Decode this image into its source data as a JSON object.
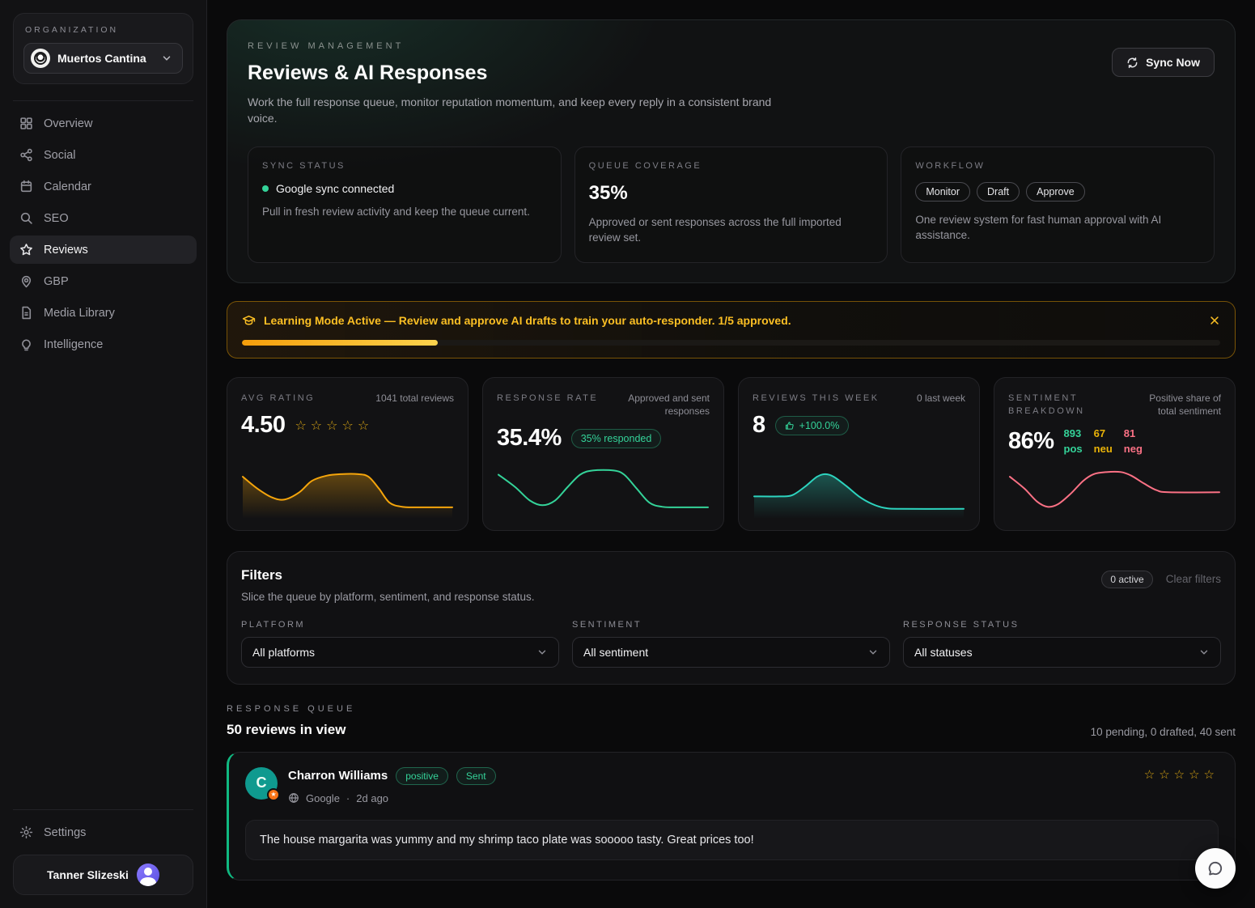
{
  "colors": {
    "amber": "#f5a50b",
    "green": "#34d399",
    "teal": "#2dd4bf",
    "pink": "#fb7185",
    "star_gold": "#d9a514"
  },
  "sidebar": {
    "org_label": "ORGANIZATION",
    "org_name": "Muertos Cantina",
    "nav": [
      {
        "label": "Overview"
      },
      {
        "label": "Social"
      },
      {
        "label": "Calendar"
      },
      {
        "label": "SEO"
      },
      {
        "label": "Reviews"
      },
      {
        "label": "GBP"
      },
      {
        "label": "Media Library"
      },
      {
        "label": "Intelligence"
      }
    ],
    "settings_label": "Settings",
    "user_name": "Tanner Slizeski"
  },
  "hero": {
    "eyebrow": "REVIEW MANAGEMENT",
    "title": "Reviews & AI Responses",
    "description": "Work the full response queue, monitor reputation momentum, and keep every reply in a consistent brand voice.",
    "sync_button": "Sync Now",
    "cards": [
      {
        "label": "SYNC STATUS",
        "status": "Google sync connected",
        "description": "Pull in fresh review activity and keep the queue current."
      },
      {
        "label": "QUEUE COVERAGE",
        "value": "35%",
        "description": "Approved or sent responses across the full imported review set."
      },
      {
        "label": "WORKFLOW",
        "pills": [
          "Monitor",
          "Draft",
          "Approve"
        ],
        "description": "One review system for fast human approval with AI assistance."
      }
    ]
  },
  "banner": {
    "message": "Learning Mode Active — Review and approve AI drafts to train your auto-responder. 1/5 approved.",
    "progress_percent": 20
  },
  "stats": [
    {
      "label": "AVG RATING",
      "side_note": "1041 total reviews",
      "value": "4.50",
      "stars": 5,
      "spark": {
        "color": "#f5a50b",
        "fill": true,
        "points": [
          [
            0,
            0.22
          ],
          [
            0.07,
            0.45
          ],
          [
            0.14,
            0.62
          ],
          [
            0.2,
            0.66
          ],
          [
            0.27,
            0.52
          ],
          [
            0.33,
            0.3
          ],
          [
            0.4,
            0.2
          ],
          [
            0.47,
            0.17
          ],
          [
            0.55,
            0.17
          ],
          [
            0.6,
            0.22
          ],
          [
            0.65,
            0.45
          ],
          [
            0.7,
            0.72
          ],
          [
            0.76,
            0.8
          ],
          [
            0.84,
            0.81
          ],
          [
            1,
            0.81
          ]
        ]
      }
    },
    {
      "label": "RESPONSE RATE",
      "side_note": "Approved and sent responses",
      "value": "35.4%",
      "pill": "35% responded",
      "spark": {
        "color": "#34d399",
        "fill": false,
        "points": [
          [
            0,
            0.18
          ],
          [
            0.08,
            0.42
          ],
          [
            0.15,
            0.68
          ],
          [
            0.21,
            0.77
          ],
          [
            0.27,
            0.68
          ],
          [
            0.33,
            0.42
          ],
          [
            0.39,
            0.18
          ],
          [
            0.45,
            0.1
          ],
          [
            0.55,
            0.1
          ],
          [
            0.6,
            0.18
          ],
          [
            0.66,
            0.45
          ],
          [
            0.72,
            0.72
          ],
          [
            0.78,
            0.8
          ],
          [
            0.85,
            0.81
          ],
          [
            1,
            0.81
          ]
        ]
      }
    },
    {
      "label": "REVIEWS THIS WEEK",
      "side_note": "0 last week",
      "value": "8",
      "pill": "+100.0%",
      "spark": {
        "color": "#2dd4bf",
        "fill": true,
        "points": [
          [
            0,
            0.6
          ],
          [
            0.12,
            0.6
          ],
          [
            0.18,
            0.58
          ],
          [
            0.24,
            0.42
          ],
          [
            0.3,
            0.22
          ],
          [
            0.34,
            0.17
          ],
          [
            0.38,
            0.22
          ],
          [
            0.44,
            0.4
          ],
          [
            0.5,
            0.6
          ],
          [
            0.56,
            0.74
          ],
          [
            0.62,
            0.82
          ],
          [
            0.7,
            0.84
          ],
          [
            1,
            0.84
          ]
        ]
      }
    },
    {
      "label": "SENTIMENT BREAKDOWN",
      "side_note": "Positive share of total sentiment",
      "value": "86%",
      "breakdown": [
        {
          "value": "893",
          "name": "pos"
        },
        {
          "value": "67",
          "name": "neu"
        },
        {
          "value": "81",
          "name": "neg"
        }
      ],
      "spark": {
        "color": "#fb7185",
        "fill": false,
        "points": [
          [
            0,
            0.22
          ],
          [
            0.07,
            0.45
          ],
          [
            0.13,
            0.7
          ],
          [
            0.18,
            0.8
          ],
          [
            0.23,
            0.75
          ],
          [
            0.29,
            0.55
          ],
          [
            0.35,
            0.3
          ],
          [
            0.4,
            0.17
          ],
          [
            0.46,
            0.13
          ],
          [
            0.53,
            0.13
          ],
          [
            0.58,
            0.2
          ],
          [
            0.64,
            0.35
          ],
          [
            0.7,
            0.48
          ],
          [
            0.76,
            0.52
          ],
          [
            1,
            0.52
          ]
        ]
      }
    }
  ],
  "filters": {
    "title": "Filters",
    "subtitle": "Slice the queue by platform, sentiment, and response status.",
    "active_badge": "0 active",
    "clear_label": "Clear filters",
    "fields": [
      {
        "label": "PLATFORM",
        "value": "All platforms"
      },
      {
        "label": "SENTIMENT",
        "value": "All sentiment"
      },
      {
        "label": "RESPONSE STATUS",
        "value": "All statuses"
      }
    ]
  },
  "queue": {
    "eyebrow": "RESPONSE QUEUE",
    "title": "50 reviews in view",
    "summary": "10 pending, 0 drafted, 40 sent"
  },
  "review": {
    "initial": "C",
    "name": "Charron Williams",
    "sentiment_tag": "positive",
    "status_tag": "Sent",
    "platform": "Google",
    "separator": "·",
    "time": "2d ago",
    "stars": 5,
    "text": "The house margarita was yummy and my shrimp taco plate was sooooo tasty. Great prices too!"
  }
}
